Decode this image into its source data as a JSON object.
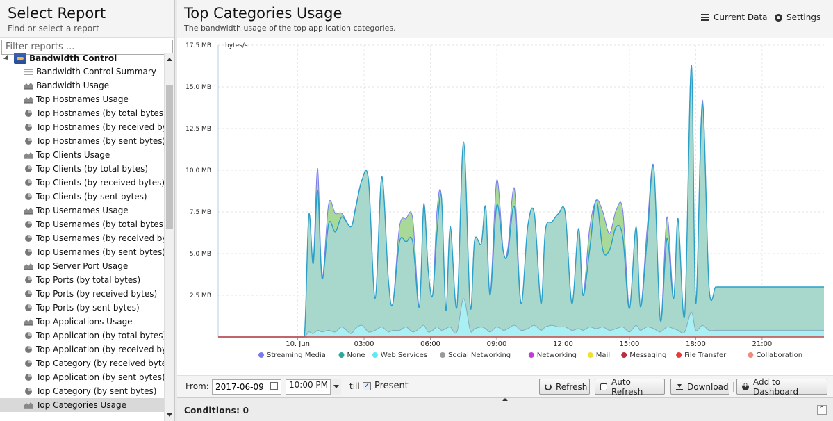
{
  "sidebar": {
    "title": "Select Report",
    "subtitle": "Find or select a report",
    "filter_placeholder": "Filter reports ...",
    "group": {
      "label": "Bandwidth Control"
    },
    "items": [
      {
        "label": "Bandwidth Control Summary",
        "icon": "list-icon"
      },
      {
        "label": "Bandwidth Usage",
        "icon": "area-chart-icon"
      },
      {
        "label": "Top Hostnames Usage",
        "icon": "area-chart-icon"
      },
      {
        "label": "Top Hostnames (by total bytes)",
        "icon": "pie-chart-icon"
      },
      {
        "label": "Top Hostnames (by received byte...",
        "icon": "pie-chart-icon"
      },
      {
        "label": "Top Hostnames (by sent bytes)",
        "icon": "pie-chart-icon"
      },
      {
        "label": "Top Clients Usage",
        "icon": "area-chart-icon"
      },
      {
        "label": "Top Clients (by total bytes)",
        "icon": "pie-chart-icon"
      },
      {
        "label": "Top Clients (by received bytes)",
        "icon": "pie-chart-icon"
      },
      {
        "label": "Top Clients (by sent bytes)",
        "icon": "pie-chart-icon"
      },
      {
        "label": "Top Usernames Usage",
        "icon": "area-chart-icon"
      },
      {
        "label": "Top Usernames (by total bytes)",
        "icon": "pie-chart-icon"
      },
      {
        "label": "Top Usernames (by received bytes)",
        "icon": "pie-chart-icon"
      },
      {
        "label": "Top Usernames (by sent bytes)",
        "icon": "pie-chart-icon"
      },
      {
        "label": "Top Server Port Usage",
        "icon": "area-chart-icon"
      },
      {
        "label": "Top Ports (by total bytes)",
        "icon": "pie-chart-icon"
      },
      {
        "label": "Top Ports (by received bytes)",
        "icon": "pie-chart-icon"
      },
      {
        "label": "Top Ports (by sent bytes)",
        "icon": "pie-chart-icon"
      },
      {
        "label": "Top Applications Usage",
        "icon": "area-chart-icon"
      },
      {
        "label": "Top Application (by total bytes)",
        "icon": "pie-chart-icon"
      },
      {
        "label": "Top Application (by received bytes)",
        "icon": "pie-chart-icon"
      },
      {
        "label": "Top Category (by received bytes)",
        "icon": "pie-chart-icon"
      },
      {
        "label": "Top Application (by sent bytes)",
        "icon": "pie-chart-icon"
      },
      {
        "label": "Top Category (by sent bytes)",
        "icon": "pie-chart-icon"
      },
      {
        "label": "Top Categories Usage",
        "icon": "area-chart-icon",
        "selected": true
      }
    ]
  },
  "header": {
    "title": "Top Categories Usage",
    "subtitle": "The bandwidth usage of the top application categories.",
    "current_data_label": "Current Data",
    "settings_label": "Settings"
  },
  "chart_data": {
    "type": "area",
    "ylabel": "bytes/s",
    "ylim": [
      0,
      17.5
    ],
    "yticks": [
      "2.5 MB",
      "5.0 MB",
      "7.5 MB",
      "10.0 MB",
      "12.5 MB",
      "15.0 MB",
      "17.5 MB"
    ],
    "xlim": [
      -3.6,
      23.8
    ],
    "xticks": [
      {
        "x": 0,
        "label": "10. Jun"
      },
      {
        "x": 3,
        "label": "03:00"
      },
      {
        "x": 6,
        "label": "06:00"
      },
      {
        "x": 9,
        "label": "09:00"
      },
      {
        "x": 12,
        "label": "12:00"
      },
      {
        "x": 15,
        "label": "15:00"
      },
      {
        "x": 18,
        "label": "18:00"
      },
      {
        "x": 21,
        "label": "21:00"
      }
    ],
    "x": [
      -3.6,
      -0.2,
      0.0,
      0.3,
      0.5,
      0.7,
      0.9,
      1.1,
      1.4,
      1.7,
      2.0,
      2.4,
      2.6,
      2.9,
      3.2,
      3.5,
      3.8,
      4.1,
      4.3,
      4.6,
      4.9,
      5.2,
      5.5,
      5.7,
      5.9,
      6.1,
      6.3,
      6.5,
      6.7,
      6.9,
      7.2,
      7.5,
      7.8,
      8.0,
      8.3,
      8.5,
      8.7,
      9.0,
      9.3,
      9.5,
      9.8,
      10.1,
      10.4,
      10.7,
      11.0,
      11.2,
      11.5,
      11.8,
      12.1,
      12.4,
      12.7,
      12.9,
      13.2,
      13.5,
      13.8,
      14.1,
      14.4,
      14.7,
      15.0,
      15.3,
      15.5,
      15.8,
      16.1,
      16.4,
      16.7,
      17.0,
      17.2,
      17.5,
      17.8,
      18.0,
      18.3,
      18.6,
      18.9,
      19.1,
      19.4,
      19.7,
      20.0,
      20.3,
      20.6,
      20.9,
      21.2,
      21.5,
      21.7,
      22.0,
      22.3,
      22.6,
      22.9,
      23.1,
      23.4,
      23.6,
      23.8
    ],
    "series": [
      {
        "name": "Streaming Media",
        "color": "#7a7af0",
        "values": [
          0,
          0,
          0,
          0,
          7.3,
          4.6,
          10.1,
          3.6,
          8.0,
          7.4,
          7.4,
          6.6,
          7.7,
          9.4,
          9.4,
          2.3,
          9.6,
          3.4,
          2.0,
          6.6,
          7.1,
          7.1,
          1.8,
          8.0,
          4.0,
          2.5,
          7.6,
          8.4,
          1.6,
          6.6,
          1.8,
          11.7,
          1.8,
          5.8,
          5.6,
          7.8,
          2.5,
          9.4,
          5.1,
          5.3,
          8.9,
          2.0,
          6.6,
          7.4,
          2.0,
          6.4,
          6.9,
          7.4,
          7.4,
          2.0,
          6.5,
          2.5,
          6.5,
          8.2,
          7.5,
          6.2,
          7.6,
          7.6,
          1.7,
          6.6,
          1.8,
          6.5,
          10.2,
          1.0,
          7.2,
          2.3,
          7.1,
          1.3,
          16.3,
          2.0,
          14.2,
          3.0,
          3.0,
          3.0,
          3.0,
          3.0,
          3.0,
          3.0,
          3.0,
          3.0,
          3.0,
          3.0,
          3.0,
          3.0,
          3.0,
          3.0,
          3.0,
          3.0,
          3.0,
          3.0,
          3.0
        ]
      },
      {
        "name": "None",
        "color": "#2aa89a",
        "values": [
          0,
          0,
          0,
          0,
          7.3,
          4.4,
          8.8,
          3.5,
          6.8,
          6.3,
          7.2,
          6.6,
          7.6,
          9.4,
          9.4,
          2.3,
          9.6,
          3.4,
          2.0,
          5.7,
          5.7,
          5.7,
          1.8,
          7.9,
          4.0,
          2.5,
          6.3,
          8.4,
          1.6,
          6.6,
          1.8,
          11.7,
          1.8,
          5.8,
          5.6,
          7.8,
          2.5,
          7.9,
          5.1,
          5.0,
          7.8,
          2.0,
          6.6,
          7.4,
          2.0,
          6.4,
          6.9,
          7.4,
          7.4,
          2.0,
          6.5,
          2.5,
          5.2,
          8.2,
          5.2,
          5.2,
          6.6,
          6.0,
          1.7,
          6.6,
          1.8,
          5.8,
          10.2,
          1.0,
          5.9,
          2.3,
          7.1,
          1.3,
          16.3,
          2.0,
          14.0,
          3.0,
          3.0,
          3.0,
          3.0,
          3.0,
          3.0,
          3.0,
          3.0,
          3.0,
          3.0,
          3.0,
          3.0,
          3.0,
          3.0,
          3.0,
          3.0,
          3.0,
          3.0,
          3.0,
          3.0
        ]
      },
      {
        "name": "Web Services",
        "color": "#5ee8f2",
        "values": [
          0,
          0,
          0,
          0,
          0.3,
          0.2,
          0.4,
          0.3,
          0.4,
          0.3,
          0.6,
          0.2,
          0.5,
          0.7,
          0.3,
          0.4,
          0.6,
          0.3,
          0.4,
          0.4,
          0.6,
          0.3,
          0.5,
          0.7,
          0.3,
          0.4,
          0.6,
          0.4,
          0.5,
          0.6,
          0.3,
          2.3,
          0.4,
          0.5,
          0.6,
          0.5,
          0.3,
          0.6,
          0.4,
          0.5,
          0.7,
          0.4,
          0.5,
          0.7,
          0.4,
          0.6,
          0.7,
          0.6,
          0.6,
          0.4,
          0.5,
          0.4,
          0.6,
          0.5,
          0.6,
          0.4,
          0.5,
          0.6,
          0.3,
          0.7,
          0.4,
          0.6,
          0.5,
          0.3,
          0.6,
          0.5,
          0.4,
          0.3,
          1.5,
          0.4,
          0.7,
          0.4,
          0.4,
          0.4,
          0.4,
          0.4,
          0.4,
          0.4,
          0.4,
          0.4,
          0.4,
          0.4,
          0.4,
          0.4,
          0.4,
          0.4,
          0.4,
          0.4,
          0.4,
          0.4,
          0.4
        ]
      },
      {
        "name": "Social Networking",
        "color": "#9a9a9a"
      },
      {
        "name": "Networking",
        "color": "#c23bd8"
      },
      {
        "name": "Mail",
        "color": "#f0e030"
      },
      {
        "name": "Messaging",
        "color": "#b83040"
      },
      {
        "name": "File Transfer",
        "color": "#e83a3a"
      },
      {
        "name": "Collaboration",
        "color": "#f08a7a"
      }
    ],
    "legend": "bottom"
  },
  "controls": {
    "from_label": "From:",
    "date_value": "2017-06-09",
    "time_value": "10:00 PM",
    "till_label": "till",
    "present_label": "Present",
    "present_checked": true,
    "refresh_label": "Refresh",
    "auto_refresh_label": "Auto Refresh",
    "download_label": "Download",
    "add_dashboard_label": "Add to Dashboard"
  },
  "conditions": {
    "label": "Conditions: 0"
  }
}
